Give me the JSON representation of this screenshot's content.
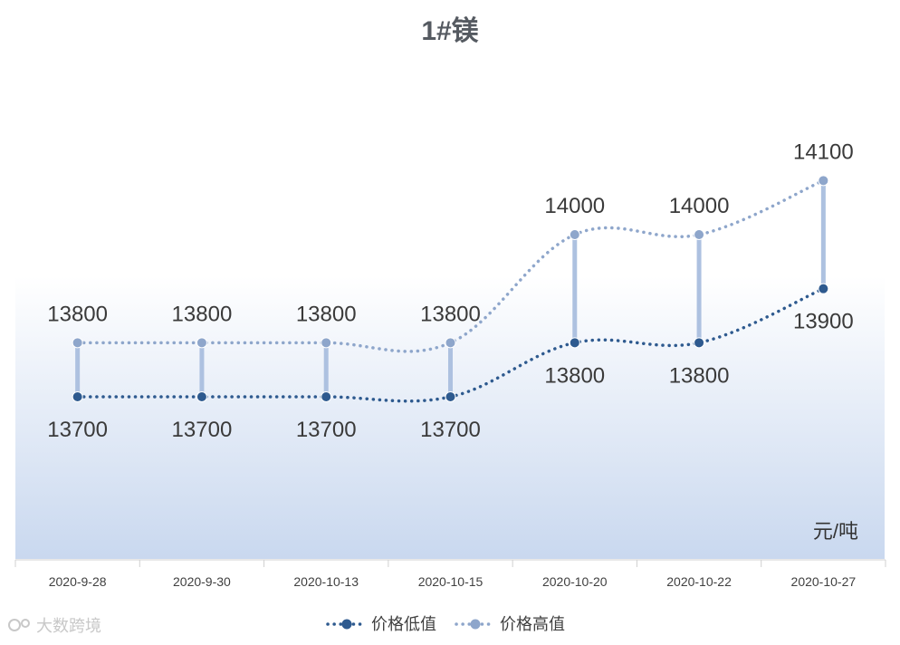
{
  "chart_data": {
    "type": "line",
    "title": "1#镁",
    "unit_label": "元/吨",
    "categories": [
      "2020-9-28",
      "2020-9-30",
      "2020-10-13",
      "2020-10-15",
      "2020-10-20",
      "2020-10-22",
      "2020-10-27"
    ],
    "series": [
      {
        "name": "价格低值",
        "values": [
          13700,
          13700,
          13700,
          13700,
          13800,
          13800,
          13900
        ],
        "color": "#2e5a8f"
      },
      {
        "name": "价格高值",
        "values": [
          13800,
          13800,
          13800,
          13800,
          14000,
          14000,
          14100
        ],
        "color": "#8ea6cb"
      }
    ],
    "ylim": [
      13400,
      14300
    ],
    "grid": false,
    "high_low_lines": true,
    "legend_position": "bottom",
    "background_gradient": [
      "#ffffff",
      "#c9d8ef"
    ]
  },
  "watermark": "大数跨境"
}
